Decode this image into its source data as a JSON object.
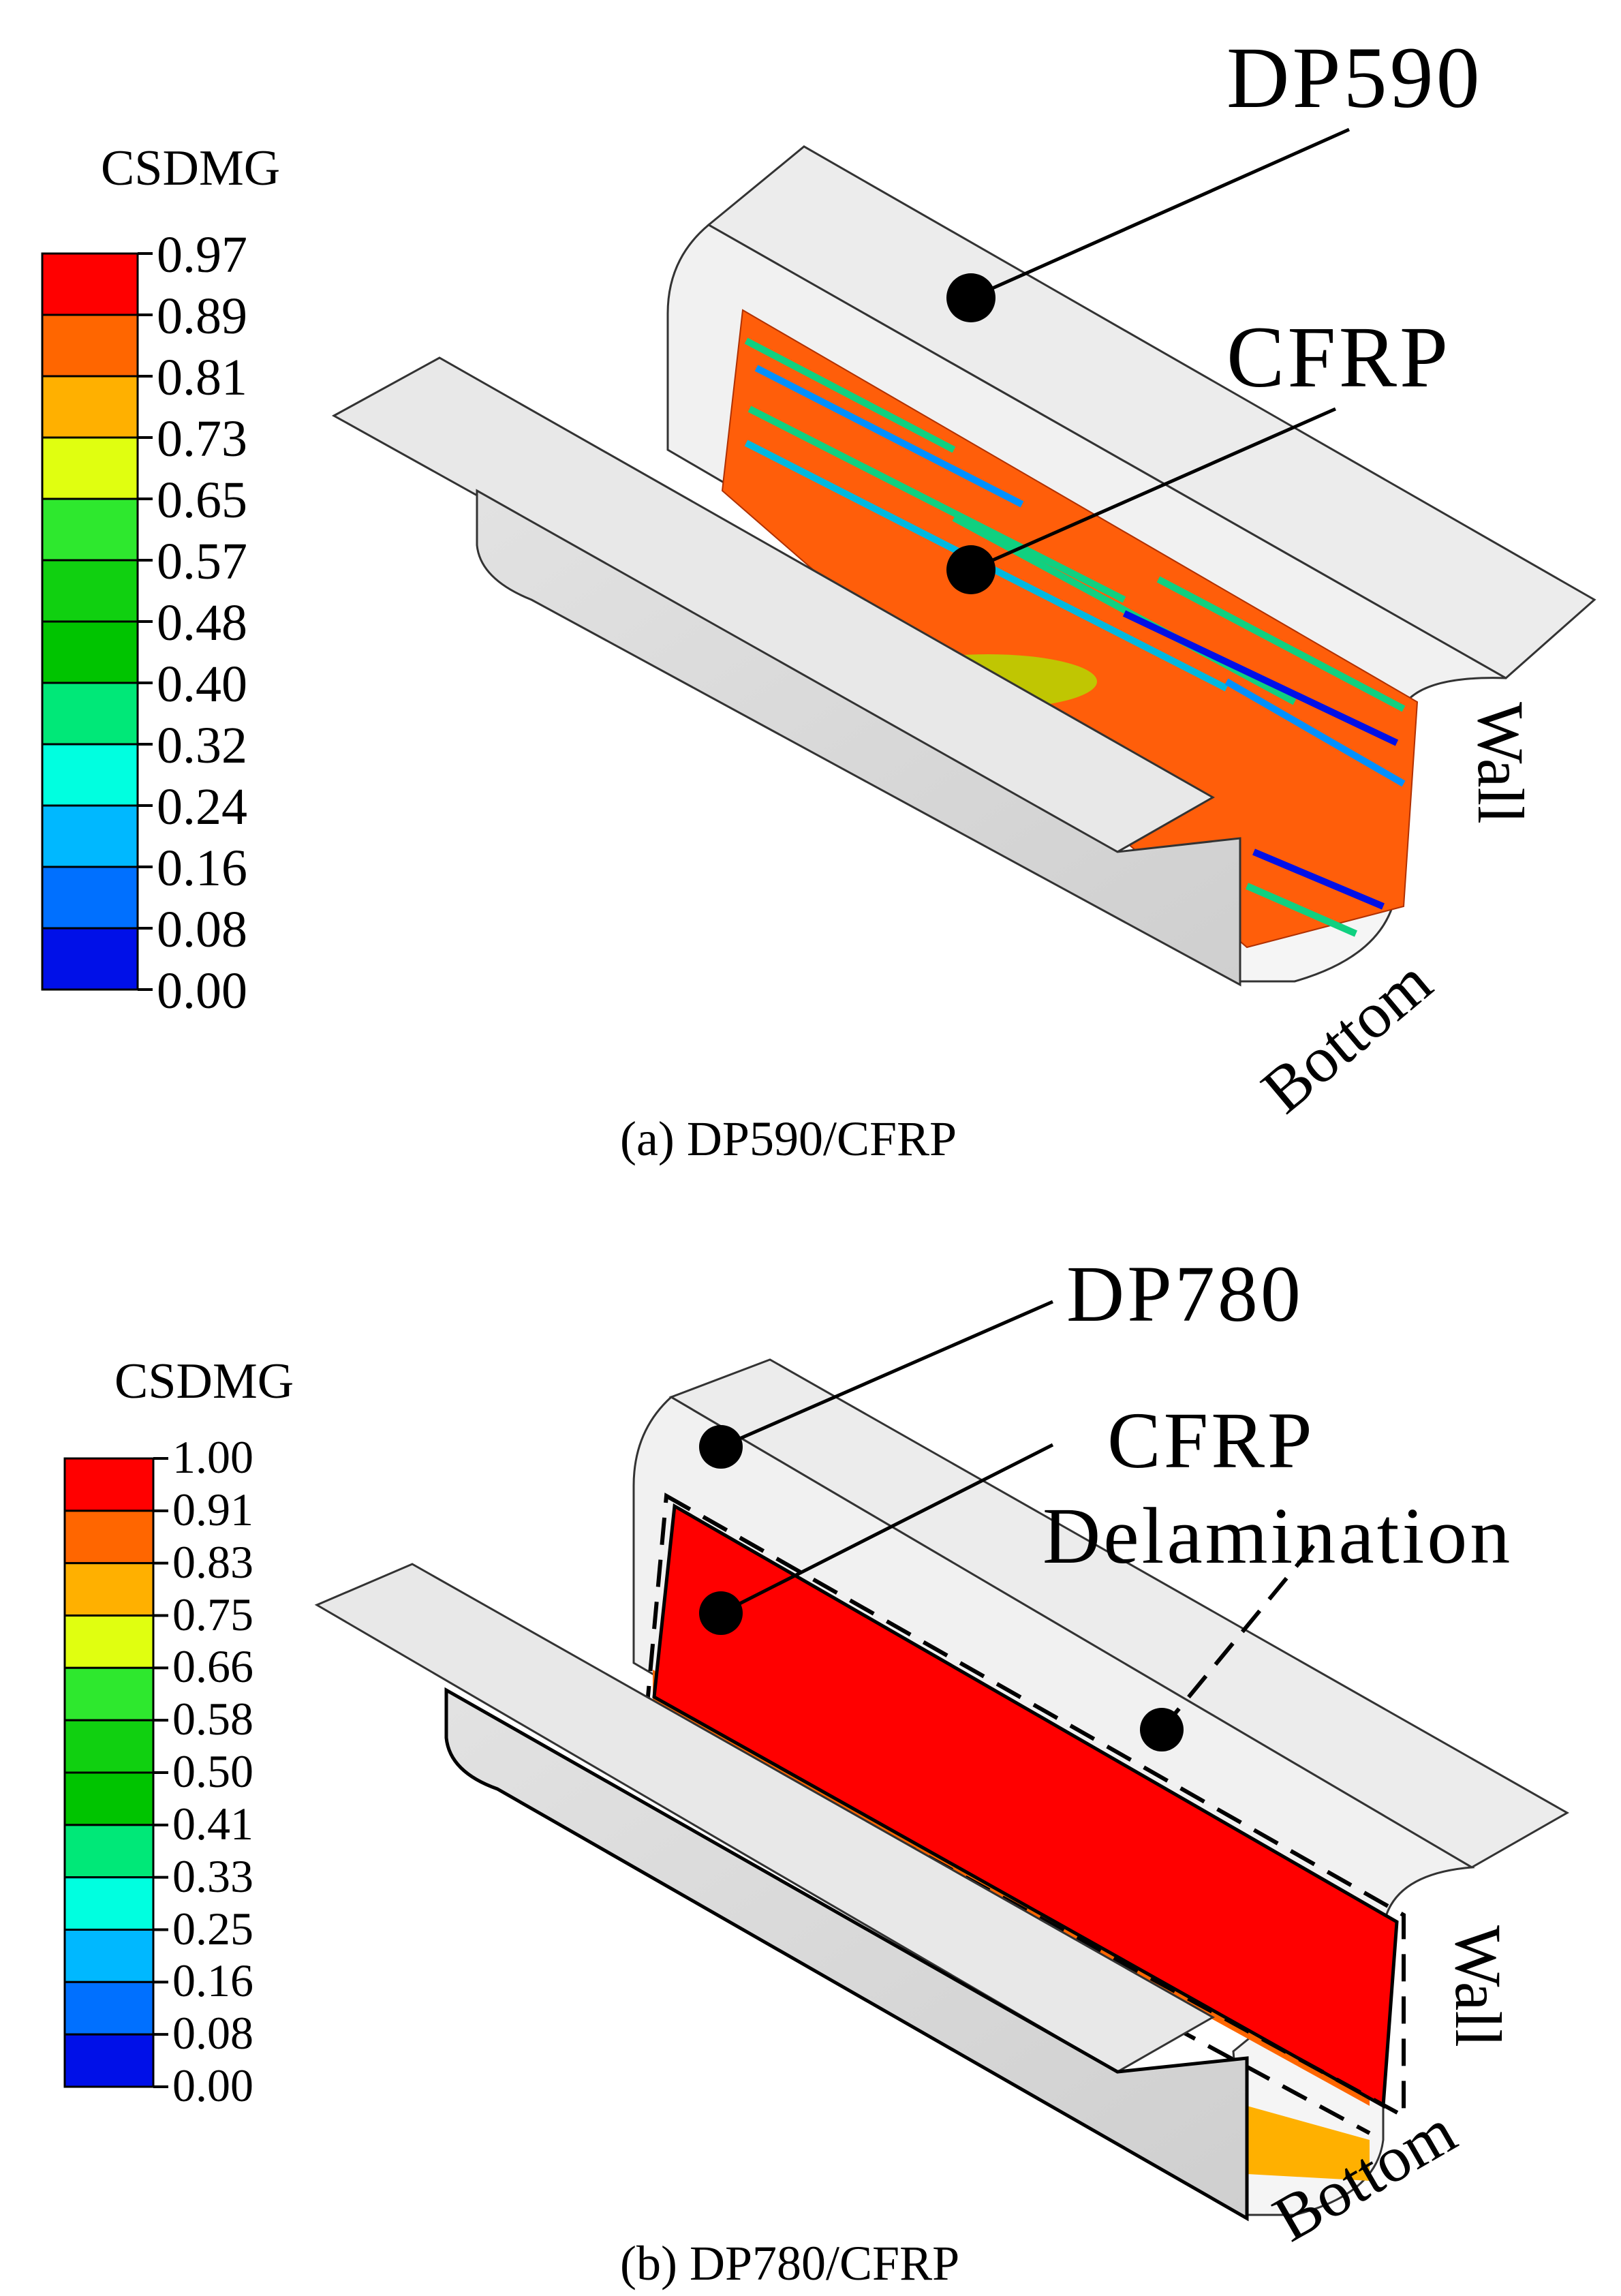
{
  "panels": [
    {
      "legend": {
        "title": "CSDMG",
        "values": [
          "0.97",
          "0.89",
          "0.81",
          "0.73",
          "0.65",
          "0.57",
          "0.48",
          "0.40",
          "0.32",
          "0.24",
          "0.16",
          "0.08",
          "0.00"
        ],
        "colors": [
          "#ff0000",
          "#ff6600",
          "#ffb000",
          "#e0ff10",
          "#2ee82e",
          "#10d010",
          "#00c400",
          "#00e878",
          "#00ffe0",
          "#00b8ff",
          "#0070ff",
          "#0010e8"
        ]
      },
      "labels": {
        "steel": "DP590",
        "composite": "CFRP",
        "wall": "Wall",
        "bottom": "Bottom"
      },
      "caption": "(a) DP590/CFRP"
    },
    {
      "legend": {
        "title": "CSDMG",
        "values": [
          "1.00",
          "0.91",
          "0.83",
          "0.75",
          "0.66",
          "0.58",
          "0.50",
          "0.41",
          "0.33",
          "0.25",
          "0.16",
          "0.08",
          "0.00"
        ],
        "colors": [
          "#ff0000",
          "#ff6600",
          "#ffb000",
          "#e0ff10",
          "#2ee82e",
          "#10d010",
          "#00c400",
          "#00e878",
          "#00ffe0",
          "#00b8ff",
          "#0070ff",
          "#0010e8"
        ]
      },
      "labels": {
        "steel": "DP780",
        "composite": "CFRP",
        "delamination": "Delamination",
        "wall": "Wall",
        "bottom": "Bottom"
      },
      "caption": "(b) DP780/CFRP"
    }
  ]
}
